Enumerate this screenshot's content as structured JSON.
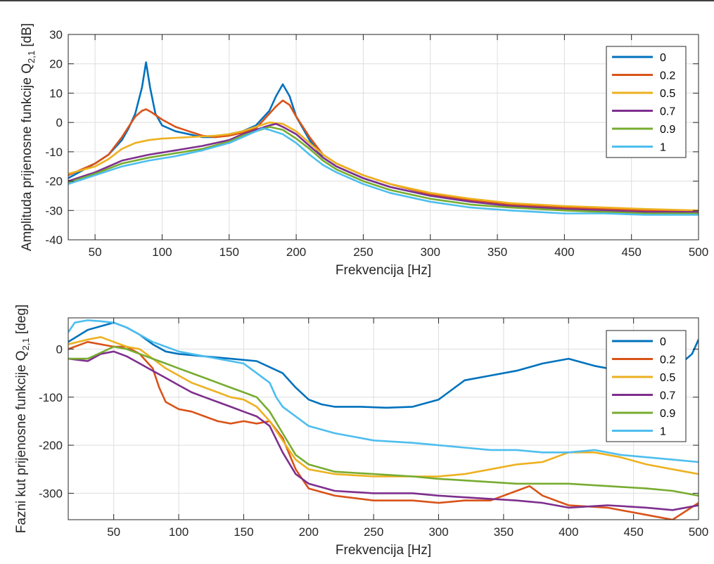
{
  "chart_data": [
    {
      "type": "line",
      "xlabel": "Frekvencija [Hz]",
      "ylabel_main": "Amplituda prijenosne funkcije Q",
      "ylabel_sub": "2,1",
      "ylabel_unit": " [dB]",
      "xlim": [
        30,
        500
      ],
      "ylim": [
        -40,
        30
      ],
      "xticks": [
        50,
        100,
        150,
        200,
        250,
        300,
        350,
        400,
        450,
        500
      ],
      "yticks": [
        -40,
        -30,
        -20,
        -10,
        0,
        10,
        20,
        30
      ],
      "grid": true,
      "legend": "top-right",
      "series": [
        {
          "name": "0",
          "color": "#0072BD",
          "x": [
            30,
            50,
            60,
            70,
            75,
            80,
            85,
            88,
            91,
            95,
            100,
            110,
            120,
            130,
            140,
            150,
            160,
            170,
            180,
            185,
            190,
            195,
            200,
            210,
            220,
            230,
            250,
            270,
            300,
            330,
            360,
            400,
            430,
            460,
            500
          ],
          "y": [
            -19,
            -14,
            -11,
            -6,
            -2,
            3,
            12,
            20.5,
            12,
            3,
            -1,
            -3,
            -4,
            -5,
            -5,
            -4,
            -3,
            -1,
            4,
            9,
            13,
            9,
            2,
            -6,
            -12,
            -15,
            -19,
            -22,
            -25,
            -27,
            -28,
            -29,
            -30,
            -30,
            -30
          ]
        },
        {
          "name": "0.2",
          "color": "#D95319",
          "x": [
            30,
            50,
            60,
            70,
            80,
            85,
            88,
            92,
            100,
            110,
            120,
            130,
            140,
            150,
            160,
            170,
            180,
            185,
            190,
            195,
            200,
            210,
            220,
            230,
            250,
            270,
            300,
            330,
            360,
            400,
            430,
            460,
            500
          ],
          "y": [
            -18,
            -14,
            -11,
            -5,
            2,
            4,
            4.5,
            3.5,
            1,
            -1.5,
            -3,
            -4.5,
            -5,
            -4.5,
            -3.5,
            -2,
            3,
            5.5,
            7.5,
            6,
            2,
            -5,
            -11,
            -14,
            -18,
            -21,
            -24.5,
            -26.5,
            -28,
            -29,
            -29.5,
            -30,
            -30
          ]
        },
        {
          "name": "0.5",
          "color": "#EDB120",
          "x": [
            30,
            50,
            60,
            70,
            80,
            90,
            100,
            120,
            140,
            150,
            160,
            170,
            180,
            190,
            200,
            210,
            220,
            230,
            250,
            270,
            300,
            330,
            360,
            400,
            430,
            460,
            500
          ],
          "y": [
            -17.5,
            -15,
            -12.5,
            -9,
            -7,
            -6,
            -5.5,
            -5,
            -4.5,
            -4,
            -3,
            -1.5,
            0,
            -0.5,
            -3,
            -7,
            -11,
            -14,
            -18,
            -21,
            -24,
            -26,
            -27.5,
            -28.5,
            -29,
            -29.5,
            -30
          ]
        },
        {
          "name": "0.7",
          "color": "#7E2F8E",
          "x": [
            30,
            50,
            70,
            90,
            110,
            130,
            150,
            160,
            170,
            180,
            185,
            190,
            200,
            210,
            220,
            230,
            250,
            270,
            300,
            330,
            360,
            400,
            430,
            460,
            500
          ],
          "y": [
            -20,
            -17,
            -13,
            -11,
            -9.5,
            -8,
            -6,
            -4,
            -2.5,
            -1,
            -0.5,
            -1.5,
            -4,
            -8,
            -12,
            -15,
            -19,
            -22,
            -25,
            -27,
            -28.5,
            -29.5,
            -30,
            -30.5,
            -30.5
          ]
        },
        {
          "name": "0.9",
          "color": "#77AC30",
          "x": [
            30,
            50,
            70,
            90,
            110,
            130,
            150,
            160,
            170,
            180,
            190,
            200,
            210,
            220,
            230,
            250,
            270,
            300,
            330,
            360,
            400,
            430,
            460,
            500
          ],
          "y": [
            -20.5,
            -17.5,
            -14,
            -12,
            -10.5,
            -9,
            -6.5,
            -4.5,
            -3,
            -1.5,
            -2.5,
            -5.5,
            -9,
            -13,
            -16,
            -20,
            -23,
            -26,
            -28,
            -29,
            -30,
            -30.5,
            -31,
            -31
          ]
        },
        {
          "name": "1",
          "color": "#4DBEEE",
          "x": [
            30,
            50,
            70,
            90,
            110,
            130,
            150,
            160,
            170,
            175,
            180,
            190,
            200,
            210,
            220,
            230,
            250,
            270,
            300,
            330,
            360,
            400,
            430,
            460,
            500
          ],
          "y": [
            -21,
            -18,
            -15,
            -13,
            -11.5,
            -9.5,
            -7,
            -5,
            -3,
            -2,
            -2.5,
            -4,
            -7,
            -11,
            -14.5,
            -17,
            -21,
            -24,
            -27,
            -29,
            -30,
            -31,
            -31,
            -31.5,
            -31.5
          ]
        }
      ]
    },
    {
      "type": "line",
      "xlabel": "Frekvencija [Hz]",
      "ylabel_main": "Fazni kut prijenosne funkcije Q",
      "ylabel_sub": "2,1",
      "ylabel_unit": " [deg]",
      "xlim": [
        15,
        500
      ],
      "ylim": [
        -355,
        65
      ],
      "xticks": [
        50,
        100,
        150,
        200,
        250,
        300,
        350,
        400,
        450,
        500
      ],
      "yticks": [
        -300,
        -200,
        -100,
        0
      ],
      "grid": true,
      "legend": "top-right",
      "series": [
        {
          "name": "0",
          "color": "#0072BD",
          "x": [
            15,
            30,
            50,
            60,
            70,
            80,
            90,
            100,
            120,
            140,
            160,
            180,
            190,
            200,
            210,
            220,
            240,
            260,
            280,
            300,
            310,
            320,
            340,
            360,
            380,
            390,
            400,
            420,
            440,
            460,
            480,
            495,
            500
          ],
          "y": [
            15,
            40,
            55,
            45,
            30,
            10,
            -5,
            -10,
            -15,
            -20,
            -25,
            -50,
            -80,
            -105,
            -115,
            -120,
            -120,
            -122,
            -120,
            -105,
            -85,
            -65,
            -55,
            -45,
            -30,
            -25,
            -20,
            -35,
            -45,
            -50,
            -45,
            -10,
            20
          ]
        },
        {
          "name": "0.2",
          "color": "#D95319",
          "x": [
            15,
            30,
            50,
            60,
            70,
            80,
            85,
            90,
            100,
            110,
            120,
            130,
            140,
            150,
            160,
            170,
            180,
            190,
            200,
            220,
            250,
            280,
            300,
            320,
            340,
            360,
            370,
            380,
            400,
            430,
            460,
            480,
            500
          ],
          "y": [
            0,
            15,
            5,
            5,
            -10,
            -40,
            -80,
            -110,
            -125,
            -130,
            -140,
            -150,
            -155,
            -150,
            -155,
            -150,
            -185,
            -250,
            -290,
            -305,
            -315,
            -315,
            -320,
            -315,
            -315,
            -295,
            -285,
            -305,
            -325,
            -330,
            -345,
            -355,
            -320
          ]
        },
        {
          "name": "0.5",
          "color": "#EDB120",
          "x": [
            15,
            30,
            40,
            50,
            60,
            70,
            80,
            90,
            100,
            110,
            120,
            130,
            140,
            150,
            160,
            170,
            180,
            190,
            200,
            220,
            250,
            280,
            300,
            320,
            340,
            360,
            380,
            400,
            420,
            440,
            460,
            480,
            500
          ],
          "y": [
            10,
            20,
            25,
            15,
            5,
            0,
            -20,
            -40,
            -55,
            -70,
            -80,
            -90,
            -100,
            -105,
            -120,
            -150,
            -190,
            -230,
            -250,
            -260,
            -265,
            -265,
            -265,
            -260,
            -250,
            -240,
            -235,
            -215,
            -215,
            -225,
            -240,
            -250,
            -260
          ]
        },
        {
          "name": "0.7",
          "color": "#7E2F8E",
          "x": [
            15,
            30,
            40,
            50,
            60,
            70,
            80,
            90,
            100,
            110,
            120,
            130,
            140,
            150,
            160,
            170,
            180,
            190,
            200,
            220,
            250,
            280,
            300,
            330,
            360,
            380,
            400,
            430,
            460,
            480,
            500
          ],
          "y": [
            -20,
            -25,
            -10,
            -5,
            -15,
            -30,
            -45,
            -60,
            -75,
            -90,
            -100,
            -110,
            -120,
            -130,
            -140,
            -160,
            -215,
            -260,
            -280,
            -295,
            -300,
            -300,
            -305,
            -310,
            -315,
            -320,
            -330,
            -325,
            -330,
            -335,
            -325
          ]
        },
        {
          "name": "0.9",
          "color": "#77AC30",
          "x": [
            15,
            30,
            50,
            60,
            70,
            80,
            90,
            100,
            110,
            120,
            130,
            140,
            150,
            160,
            170,
            180,
            190,
            200,
            220,
            250,
            280,
            300,
            330,
            360,
            390,
            400,
            430,
            460,
            480,
            500
          ],
          "y": [
            -20,
            -20,
            5,
            0,
            -10,
            -20,
            -30,
            -40,
            -50,
            -60,
            -70,
            -80,
            -90,
            -100,
            -130,
            -175,
            -220,
            -240,
            -255,
            -260,
            -265,
            -270,
            -275,
            -280,
            -280,
            -280,
            -285,
            -290,
            -295,
            -305
          ]
        },
        {
          "name": "1",
          "color": "#4DBEEE",
          "x": [
            15,
            20,
            30,
            40,
            50,
            60,
            70,
            80,
            90,
            100,
            110,
            120,
            130,
            140,
            150,
            160,
            165,
            170,
            175,
            180,
            190,
            200,
            220,
            250,
            280,
            300,
            320,
            340,
            360,
            380,
            400,
            420,
            440,
            460,
            480,
            500
          ],
          "y": [
            35,
            55,
            60,
            58,
            55,
            45,
            30,
            15,
            5,
            -5,
            -10,
            -15,
            -20,
            -25,
            -30,
            -50,
            -60,
            -70,
            -100,
            -120,
            -140,
            -160,
            -175,
            -190,
            -195,
            -200,
            -205,
            -210,
            -210,
            -215,
            -215,
            -210,
            -220,
            -225,
            -230,
            -235
          ]
        }
      ]
    }
  ]
}
